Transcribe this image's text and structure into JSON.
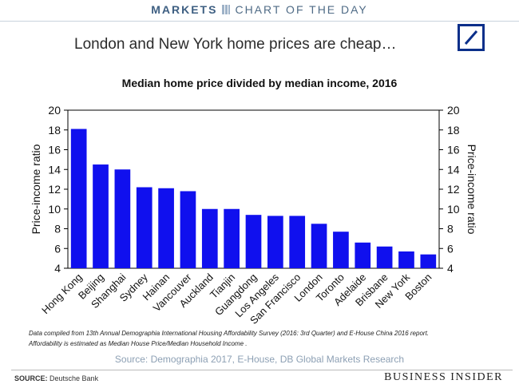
{
  "header": {
    "brand": "MARKETS",
    "section": "CHART OF THE DAY"
  },
  "headline": "London and New York home prices are cheap…",
  "logo_icon": "deutsche-bank-logo",
  "chart_data": {
    "type": "bar",
    "title": "Median home price divided by median income, 2016",
    "categories": [
      "Hong Kong",
      "Beijing",
      "Shanghai",
      "Sydney",
      "Hainan",
      "Vancouver",
      "Auckland",
      "Tianjin",
      "Guangdong",
      "Los Angeles",
      "San Francisco",
      "London",
      "Toronto",
      "Adelaide",
      "Brisbane",
      "New York",
      "Boston"
    ],
    "values": [
      18.1,
      14.5,
      14.0,
      12.2,
      12.1,
      11.8,
      10.0,
      10.0,
      9.4,
      9.3,
      9.3,
      8.5,
      7.7,
      6.6,
      6.2,
      5.7,
      5.4
    ],
    "ylabel": "Price-income ratio",
    "y2label": "Price-income ratio",
    "ylim": [
      4,
      20
    ],
    "yticks": [
      "4",
      "6",
      "8",
      "10",
      "12",
      "14",
      "16",
      "18",
      "20"
    ],
    "bar_color": "#1010ee",
    "grid": false
  },
  "footnote": {
    "line1": "Data compiled from 13th Annual Demographia International Housing Affordability Survey (2016: 3rd Quarter)  and  E-House China  2016 report.",
    "line2": "Affordability is estimated as Median House Price/Median Household Income ."
  },
  "source_line": "Source: Demographia 2017, E-House, DB Global Markets Research",
  "footer": {
    "source_label": "SOURCE:",
    "source_value": "Deutsche Bank",
    "publisher": "BUSINESS INSIDER"
  }
}
